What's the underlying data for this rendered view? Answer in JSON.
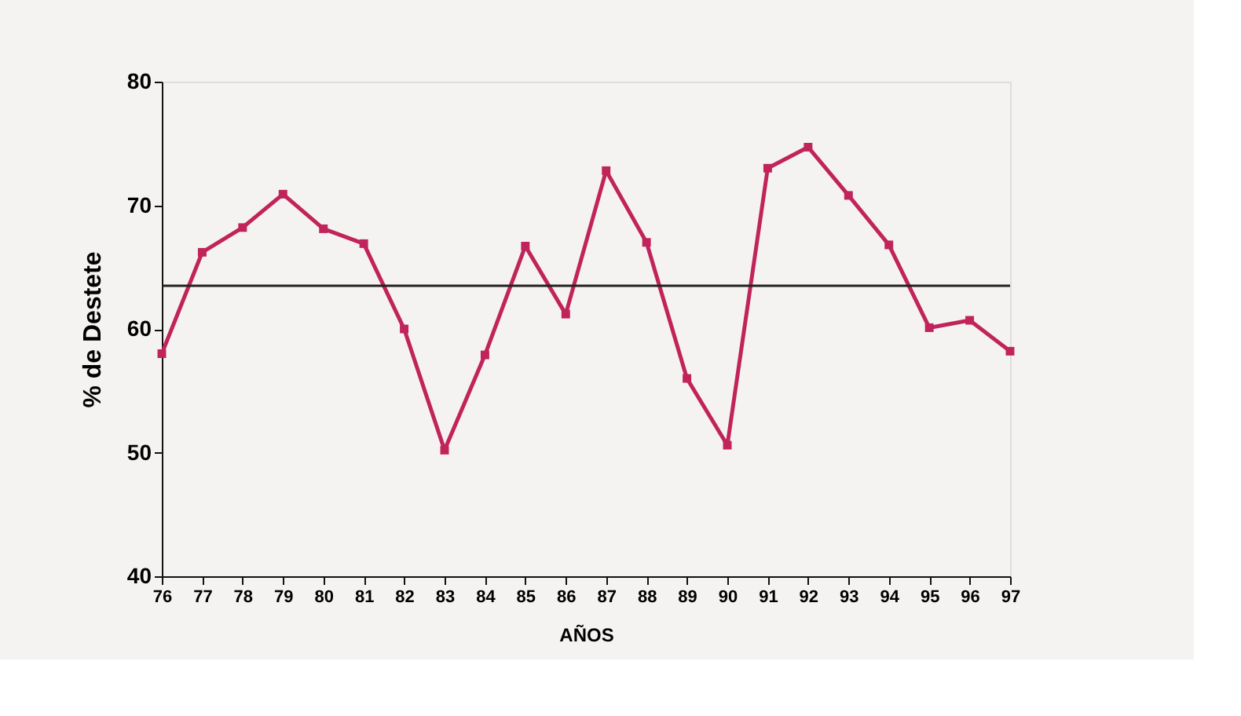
{
  "chart_data": {
    "type": "line",
    "xlabel": "AÑOS",
    "ylabel": "% de Destete",
    "categories": [
      "76",
      "77",
      "78",
      "79",
      "80",
      "81",
      "82",
      "83",
      "84",
      "85",
      "86",
      "87",
      "88",
      "89",
      "90",
      "91",
      "92",
      "93",
      "94",
      "95",
      "96",
      "97"
    ],
    "series": [
      {
        "color": "#c0245a",
        "values": [
          58.0,
          66.2,
          68.2,
          70.9,
          68.1,
          66.9,
          60.0,
          50.2,
          57.9,
          66.7,
          61.2,
          72.8,
          67.0,
          56.0,
          50.6,
          73.0,
          74.7,
          70.8,
          66.8,
          60.1,
          60.7,
          58.2
        ]
      }
    ],
    "ylim": [
      40,
      80
    ],
    "yticks": [
      40,
      50,
      60,
      70,
      80
    ],
    "grid": false,
    "marker": "square",
    "line_style": "solid",
    "ref_lines": [
      {
        "axis": "y",
        "value": 63.5,
        "color": "#222222"
      }
    ]
  }
}
